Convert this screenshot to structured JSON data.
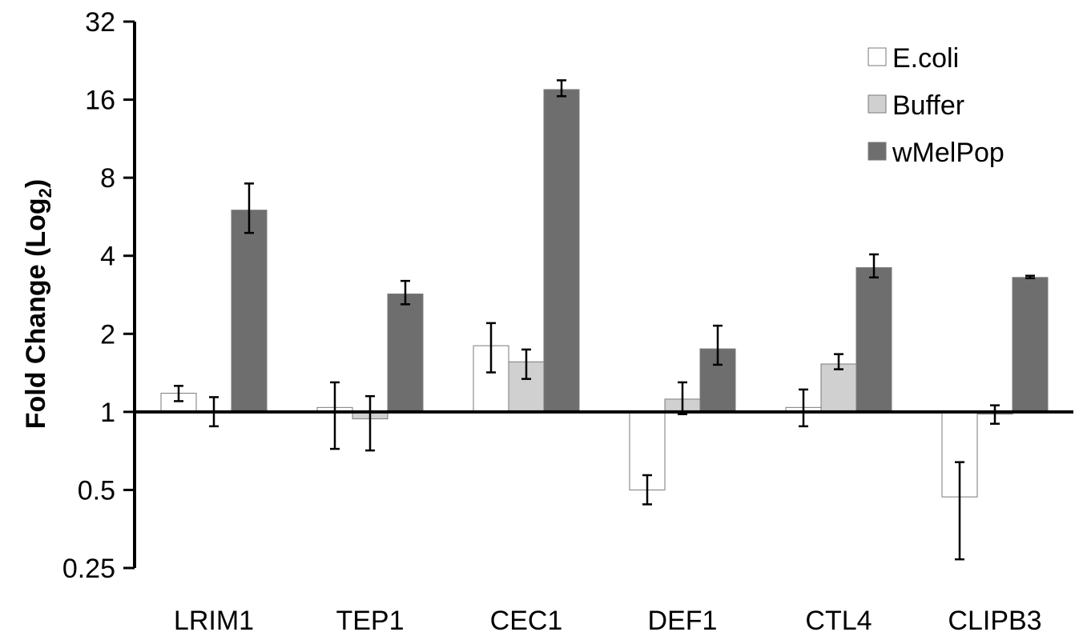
{
  "chart_data": {
    "type": "bar",
    "ylabel": "Fold Change (Log",
    "ylabel_subscript": "2",
    "ylabel_suffix": ")",
    "y_scale": "log2",
    "ylim": [
      0.25,
      32
    ],
    "yticks": [
      0.25,
      0.5,
      1,
      2,
      4,
      8,
      16,
      32
    ],
    "ytick_labels": [
      "0.25",
      "0.5",
      "1",
      "2",
      "4",
      "8",
      "16",
      "32"
    ],
    "baseline": 1,
    "categories": [
      "LRIM1",
      "TEP1",
      "CEC1",
      "DEF1",
      "CTL4",
      "CLIPB3"
    ],
    "legend_position": "top-right",
    "series": [
      {
        "name": "E.coli",
        "color": "#ffffff",
        "values": [
          1.18,
          1.04,
          1.8,
          0.5,
          1.04,
          0.47
        ],
        "err_low": [
          1.1,
          0.72,
          1.42,
          0.44,
          0.88,
          0.27
        ],
        "err_high": [
          1.26,
          1.3,
          2.2,
          0.57,
          1.22,
          0.64
        ]
      },
      {
        "name": "Buffer",
        "color": "#d0d0d0",
        "values": [
          1.0,
          0.94,
          1.56,
          1.12,
          1.53,
          0.98
        ],
        "err_low": [
          0.88,
          0.71,
          1.34,
          0.98,
          1.46,
          0.9
        ],
        "err_high": [
          1.14,
          1.15,
          1.74,
          1.3,
          1.67,
          1.06
        ]
      },
      {
        "name": "wMelPop",
        "color": "#6e6e6e",
        "values": [
          6.0,
          2.85,
          17.5,
          1.75,
          3.6,
          3.3
        ],
        "err_low": [
          4.9,
          2.6,
          16.5,
          1.52,
          3.3,
          3.28
        ],
        "err_high": [
          7.6,
          3.2,
          19.0,
          2.15,
          4.05,
          3.35
        ]
      }
    ]
  }
}
